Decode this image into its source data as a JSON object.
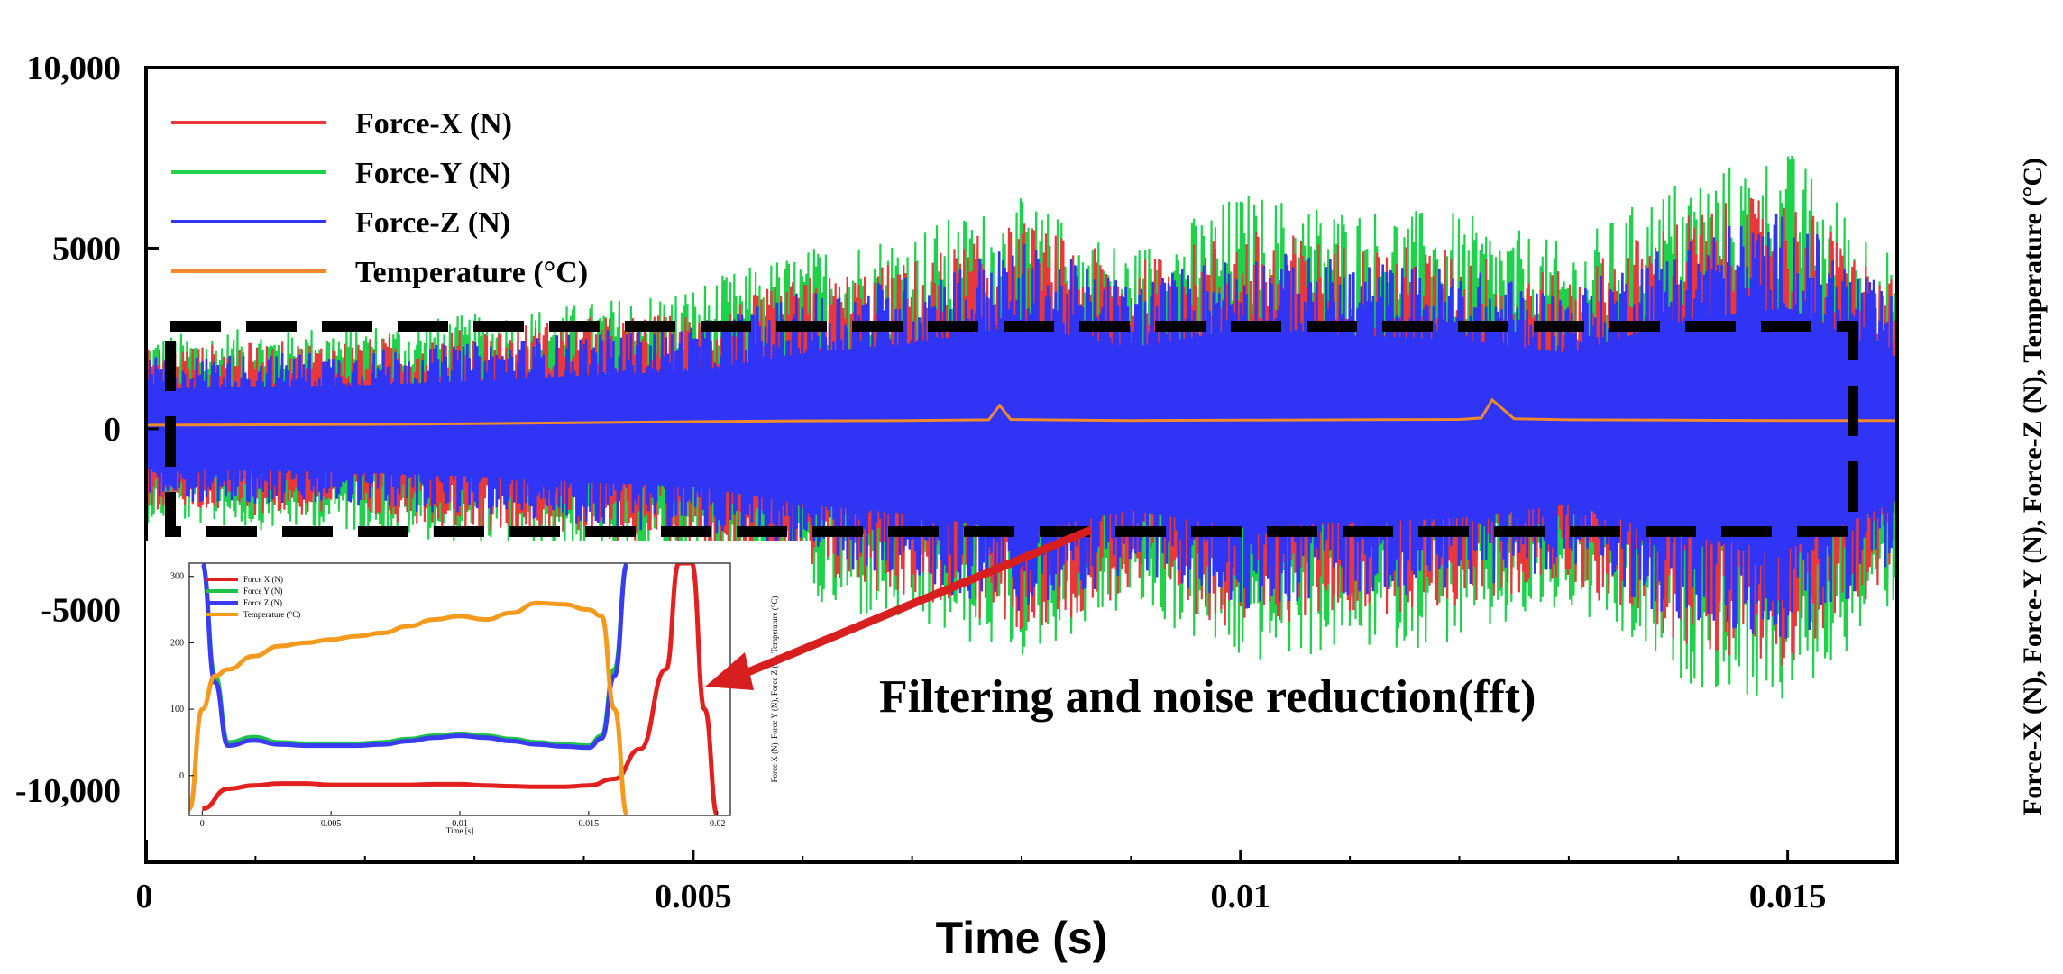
{
  "chart_data": [
    {
      "type": "line",
      "title": "",
      "xlabel": "Time (s)",
      "ylabel": "Force-X (N), Force-Y (N), Force-Z (N), Temperature (°C)",
      "xlim": [
        0,
        0.016
      ],
      "ylim": [
        -12000,
        10000
      ],
      "x_ticks": [
        0,
        0.005,
        0.01,
        0.015
      ],
      "x_tick_labels": [
        "0",
        "0.005",
        "0.01",
        "0.015"
      ],
      "y_ticks": [
        10000,
        5000,
        0,
        -5000,
        -10000
      ],
      "y_tick_labels": [
        "10,000",
        "5000",
        "0",
        "-5000",
        "-10,000"
      ],
      "legend_position": "top-left",
      "series": [
        {
          "name": "Force-X (N)",
          "color": "#e8383a",
          "envelope_x": [
            0,
            0.001,
            0.002,
            0.003,
            0.004,
            0.005,
            0.006,
            0.007,
            0.008,
            0.009,
            0.01,
            0.011,
            0.012,
            0.013,
            0.014,
            0.015,
            0.016
          ],
          "envelope_amplitude": [
            2300,
            2400,
            2500,
            2800,
            3100,
            3200,
            4200,
            4700,
            5800,
            4600,
            5600,
            5200,
            5000,
            4300,
            6000,
            6600,
            4000
          ]
        },
        {
          "name": "Force-Y (N)",
          "color": "#1fd14b",
          "envelope_x": [
            0,
            0.001,
            0.002,
            0.003,
            0.004,
            0.005,
            0.006,
            0.007,
            0.008,
            0.009,
            0.01,
            0.011,
            0.012,
            0.013,
            0.014,
            0.015,
            0.016
          ],
          "envelope_amplitude": [
            2600,
            2800,
            2900,
            3200,
            3500,
            4000,
            5000,
            5600,
            6400,
            5000,
            6600,
            6200,
            6000,
            5100,
            7000,
            7800,
            4800
          ]
        },
        {
          "name": "Force-Z (N)",
          "color": "#2f34f5",
          "envelope_x": [
            0,
            0.001,
            0.002,
            0.003,
            0.004,
            0.005,
            0.006,
            0.007,
            0.008,
            0.009,
            0.01,
            0.011,
            0.012,
            0.013,
            0.014,
            0.015,
            0.016
          ],
          "envelope_amplitude": [
            2000,
            2100,
            2200,
            2400,
            2700,
            2900,
            3800,
            4300,
            5200,
            4100,
            5000,
            4700,
            4500,
            3800,
            5400,
            6100,
            3600
          ]
        },
        {
          "name": "Temperature (°C)",
          "color": "#f08a2a",
          "x": [
            0,
            0.001,
            0.002,
            0.003,
            0.004,
            0.005,
            0.006,
            0.007,
            0.0077,
            0.0078,
            0.0079,
            0.0085,
            0.009,
            0.01,
            0.011,
            0.012,
            0.0122,
            0.0123,
            0.0125,
            0.013,
            0.014,
            0.015,
            0.016
          ],
          "y": [
            100,
            110,
            120,
            140,
            170,
            200,
            220,
            230,
            250,
            650,
            260,
            240,
            230,
            240,
            250,
            260,
            300,
            800,
            280,
            250,
            240,
            230,
            230
          ]
        }
      ]
    },
    {
      "type": "line",
      "title": "",
      "xlabel": "Time [s]",
      "ylabel": "Force X (N), Force Y (N), Force Z (N), Temperature (°C)",
      "xlim": [
        -0.0005,
        0.0205
      ],
      "ylim": [
        -60,
        320
      ],
      "x_ticks": [
        0,
        0.005,
        0.01,
        0.015,
        0.02
      ],
      "x_tick_labels": [
        "0",
        "0.005",
        "0.01",
        "0.015",
        "0.02"
      ],
      "y_ticks": [
        0,
        100,
        200,
        300
      ],
      "y_tick_labels": [
        "0",
        "100",
        "200",
        "300"
      ],
      "legend_position": "top-left",
      "series": [
        {
          "name": "Force X (N)",
          "color": "#e32020",
          "x": [
            0,
            0.001,
            0.002,
            0.003,
            0.004,
            0.005,
            0.006,
            0.007,
            0.008,
            0.009,
            0.01,
            0.011,
            0.012,
            0.013,
            0.014,
            0.015,
            0.016,
            0.017,
            0.018,
            0.0185,
            0.019,
            0.0195,
            0.02
          ],
          "y": [
            -50,
            -20,
            -15,
            -12,
            -12,
            -14,
            -14,
            -14,
            -14,
            -13,
            -13,
            -15,
            -16,
            -17,
            -17,
            -15,
            -5,
            40,
            160,
            320,
            320,
            100,
            -60
          ]
        },
        {
          "name": "Force Y (N)",
          "color": "#1ec24a",
          "x": [
            0,
            0.0005,
            0.001,
            0.002,
            0.003,
            0.004,
            0.005,
            0.006,
            0.007,
            0.008,
            0.009,
            0.01,
            0.011,
            0.012,
            0.013,
            0.014,
            0.015,
            0.0155,
            0.016,
            0.0165
          ],
          "y": [
            320,
            150,
            50,
            58,
            50,
            48,
            48,
            48,
            50,
            55,
            60,
            63,
            60,
            55,
            50,
            47,
            45,
            60,
            160,
            320
          ]
        },
        {
          "name": "Force Z (N)",
          "color": "#3a3cf2",
          "x": [
            0,
            0.0005,
            0.001,
            0.002,
            0.003,
            0.004,
            0.005,
            0.006,
            0.007,
            0.008,
            0.009,
            0.01,
            0.011,
            0.012,
            0.013,
            0.014,
            0.015,
            0.0155,
            0.016,
            0.0165
          ],
          "y": [
            320,
            140,
            45,
            53,
            47,
            45,
            45,
            45,
            47,
            52,
            57,
            60,
            57,
            52,
            47,
            44,
            42,
            56,
            150,
            320
          ]
        },
        {
          "name": "Temperature (°C)",
          "color": "#f39a1f",
          "x": [
            -0.0005,
            0,
            0.0005,
            0.001,
            0.002,
            0.003,
            0.004,
            0.005,
            0.006,
            0.007,
            0.008,
            0.009,
            0.01,
            0.011,
            0.012,
            0.013,
            0.014,
            0.015,
            0.0155,
            0.016,
            0.0165
          ],
          "y": [
            -50,
            100,
            150,
            160,
            180,
            195,
            200,
            205,
            210,
            215,
            225,
            235,
            240,
            235,
            245,
            260,
            258,
            250,
            240,
            100,
            -60
          ]
        }
      ]
    }
  ],
  "annotation": {
    "text": "Filtering and noise reduction(fft)",
    "arrow_color": "#d71f1f",
    "box_color": "#000000"
  }
}
